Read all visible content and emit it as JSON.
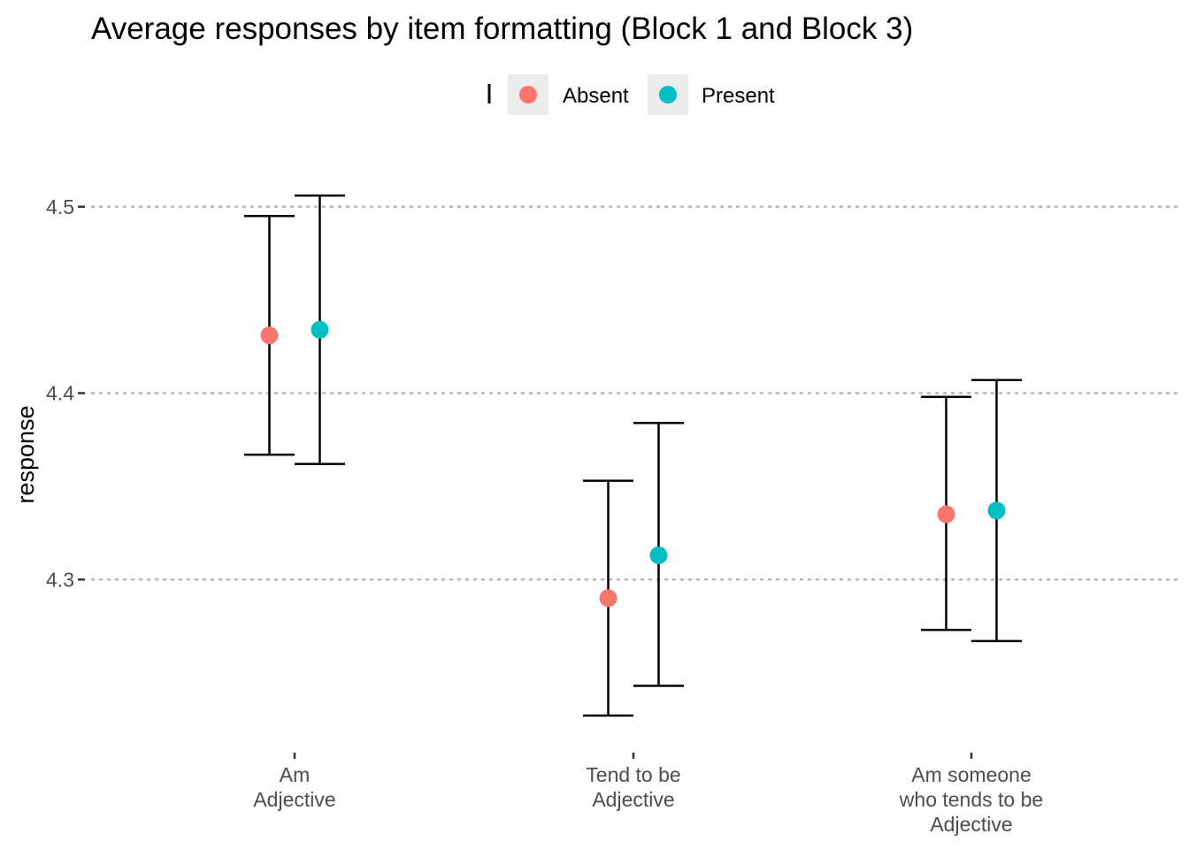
{
  "chart_data": {
    "type": "errorbar",
    "title": "Average responses by item formatting (Block 1 and Block 3)",
    "xlabel": "",
    "ylabel": "response",
    "ylim": [
      4.21,
      4.535
    ],
    "yticks": [
      4.3,
      4.4,
      4.5
    ],
    "ytick_labels": [
      "4.3",
      "4.4",
      "4.5"
    ],
    "grid": "horizontal dotted",
    "legend_placement": "top",
    "categories": [
      [
        "Am",
        "Adjective"
      ],
      [
        "Tend to be",
        "Adjective"
      ],
      [
        "Am someone",
        "who tends to be",
        "Adjective"
      ]
    ],
    "series": [
      {
        "name": "Absent",
        "color": "#F8766D",
        "values": [
          4.431,
          4.29,
          4.335
        ],
        "lower": [
          4.367,
          4.227,
          4.273
        ],
        "upper": [
          4.495,
          4.353,
          4.398
        ]
      },
      {
        "name": "Present",
        "color": "#00BFC4",
        "values": [
          4.434,
          4.313,
          4.337
        ],
        "lower": [
          4.362,
          4.243,
          4.267
        ],
        "upper": [
          4.506,
          4.384,
          4.407
        ]
      }
    ]
  }
}
